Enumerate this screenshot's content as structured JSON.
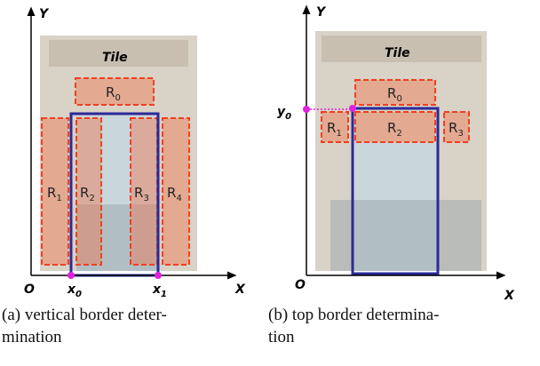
{
  "panels": [
    {
      "axis": {
        "origin": "O",
        "x": "X",
        "y": "Y"
      },
      "tile": "Tile",
      "regions": [
        {
          "base": "R",
          "sub": "0"
        },
        {
          "base": "R",
          "sub": "1"
        },
        {
          "base": "R",
          "sub": "2"
        },
        {
          "base": "R",
          "sub": "3"
        },
        {
          "base": "R",
          "sub": "4"
        }
      ],
      "points": [
        {
          "base": "x",
          "sub": "0"
        },
        {
          "base": "x",
          "sub": "1"
        }
      ],
      "caption": [
        "(a) vertical border deter-",
        "mination"
      ]
    },
    {
      "axis": {
        "origin": "O",
        "x": "X",
        "y": "Y"
      },
      "tile": "Tile",
      "regions": [
        {
          "base": "R",
          "sub": "0"
        },
        {
          "base": "R",
          "sub": "1"
        },
        {
          "base": "R",
          "sub": "2"
        },
        {
          "base": "R",
          "sub": "3"
        }
      ],
      "points": [
        {
          "base": "y",
          "sub": "0"
        }
      ],
      "caption": [
        "(b) top border determina-",
        "tion"
      ]
    }
  ]
}
